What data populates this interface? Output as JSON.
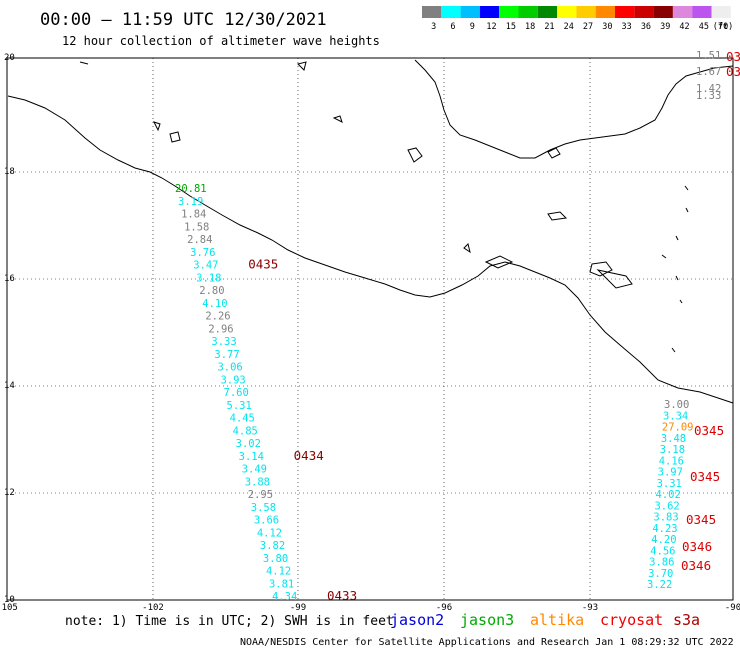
{
  "header": {
    "title": "00:00 – 11:59 UTC 12/30/2021",
    "subtitle": "12 hour collection of altimeter wave heights"
  },
  "legend": {
    "unit": "(ft)",
    "entries": [
      {
        "label": "3",
        "color": "#808080"
      },
      {
        "label": "6",
        "color": "#00ffff"
      },
      {
        "label": "9",
        "color": "#00bfff"
      },
      {
        "label": "12",
        "color": "#0000ff"
      },
      {
        "label": "15",
        "color": "#00ff00"
      },
      {
        "label": "18",
        "color": "#00cc00"
      },
      {
        "label": "21",
        "color": "#008800"
      },
      {
        "label": "24",
        "color": "#ffff00"
      },
      {
        "label": "27",
        "color": "#ffcc00"
      },
      {
        "label": "30",
        "color": "#ff8800"
      },
      {
        "label": "33",
        "color": "#ff0000"
      },
      {
        "label": "36",
        "color": "#cc0000"
      },
      {
        "label": "39",
        "color": "#880000"
      },
      {
        "label": "42",
        "color": "#dd88dd"
      },
      {
        "label": "45",
        "color": "#bb55ee"
      },
      {
        "label": "70",
        "color": "#eeeeee"
      }
    ]
  },
  "axes": {
    "lon_ticks": [
      "-105",
      "-102",
      "-99",
      "-96",
      "-93",
      "-90"
    ],
    "lat_ticks": [
      "20",
      "18",
      "16",
      "14",
      "12",
      "10"
    ]
  },
  "tracks": {
    "west": [
      {
        "v": "20.81",
        "c": "#00aa00"
      },
      {
        "v": "3.19",
        "c": "#00e5ee"
      },
      {
        "v": "1.84",
        "c": "#808080"
      },
      {
        "v": "1.58",
        "c": "#808080"
      },
      {
        "v": "2.84",
        "c": "#808080"
      },
      {
        "v": "3.76",
        "c": "#00e5ee"
      },
      {
        "v": "3.47",
        "c": "#00e5ee"
      },
      {
        "v": "3.18",
        "c": "#00e5ee"
      },
      {
        "v": "2.80",
        "c": "#808080"
      },
      {
        "v": "4.10",
        "c": "#00e5ee"
      },
      {
        "v": "2.26",
        "c": "#808080"
      },
      {
        "v": "2.96",
        "c": "#808080"
      },
      {
        "v": "3.33",
        "c": "#00e5ee"
      },
      {
        "v": "3.77",
        "c": "#00e5ee"
      },
      {
        "v": "3.06",
        "c": "#00e5ee"
      },
      {
        "v": "3.93",
        "c": "#00e5ee"
      },
      {
        "v": "7.60",
        "c": "#00e5ee"
      },
      {
        "v": "5.31",
        "c": "#00e5ee"
      },
      {
        "v": "4.45",
        "c": "#00e5ee"
      },
      {
        "v": "4.85",
        "c": "#00e5ee"
      },
      {
        "v": "3.02",
        "c": "#00e5ee"
      },
      {
        "v": "3.14",
        "c": "#00e5ee"
      },
      {
        "v": "3.49",
        "c": "#00e5ee"
      },
      {
        "v": "3.88",
        "c": "#00e5ee"
      },
      {
        "v": "2.95",
        "c": "#808080"
      },
      {
        "v": "3.58",
        "c": "#00e5ee"
      },
      {
        "v": "3.66",
        "c": "#00e5ee"
      },
      {
        "v": "4.12",
        "c": "#00e5ee"
      },
      {
        "v": "3.82",
        "c": "#00e5ee"
      },
      {
        "v": "3.80",
        "c": "#00e5ee"
      },
      {
        "v": "4.12",
        "c": "#00e5ee"
      },
      {
        "v": "3.81",
        "c": "#00e5ee"
      },
      {
        "v": "4.34",
        "c": "#00e5ee"
      }
    ],
    "west_times": [
      "0435",
      "0434",
      "0433"
    ],
    "east": [
      {
        "v": "3.00",
        "c": "#808080"
      },
      {
        "v": "3.34",
        "c": "#00e5ee"
      },
      {
        "v": "27.09",
        "c": "#ff8800"
      },
      {
        "v": "3.48",
        "c": "#00e5ee"
      },
      {
        "v": "3.18",
        "c": "#00e5ee"
      },
      {
        "v": "4.16",
        "c": "#00e5ee"
      },
      {
        "v": "3.97",
        "c": "#00e5ee"
      },
      {
        "v": "3.31",
        "c": "#00e5ee"
      },
      {
        "v": "4.02",
        "c": "#00e5ee"
      },
      {
        "v": "3.62",
        "c": "#00e5ee"
      },
      {
        "v": "3.83",
        "c": "#00e5ee"
      },
      {
        "v": "4.23",
        "c": "#00e5ee"
      },
      {
        "v": "4.20",
        "c": "#00e5ee"
      },
      {
        "v": "4.56",
        "c": "#00e5ee"
      },
      {
        "v": "3.86",
        "c": "#00e5ee"
      },
      {
        "v": "3.70",
        "c": "#00e5ee"
      },
      {
        "v": "3.22",
        "c": "#00e5ee"
      }
    ],
    "east_times": [
      "0345",
      "0345",
      "0345",
      "0346",
      "0346"
    ],
    "corner": [
      {
        "v": "1.51",
        "c": "#808080"
      },
      {
        "v": "1.67",
        "c": "#808080"
      },
      {
        "v": "1.42",
        "c": "#808080"
      },
      {
        "v": "1.33",
        "c": "#808080"
      }
    ],
    "corner_times": [
      "03",
      "03"
    ]
  },
  "footer": {
    "note": "note: 1) Time is in UTC; 2) SWH is in feet",
    "sats": [
      {
        "name": "jason2",
        "color": "#0000dd"
      },
      {
        "name": "jason3",
        "color": "#00aa00"
      },
      {
        "name": "altika",
        "color": "#ff8800"
      },
      {
        "name": "cryosat",
        "color": "#ee0000"
      },
      {
        "name": "s3a",
        "color": "#aa0000"
      }
    ],
    "credit": "NOAA/NESDIS Center for Satellite Applications and Research   Jan  1 08:29:32 UTC 2022"
  }
}
